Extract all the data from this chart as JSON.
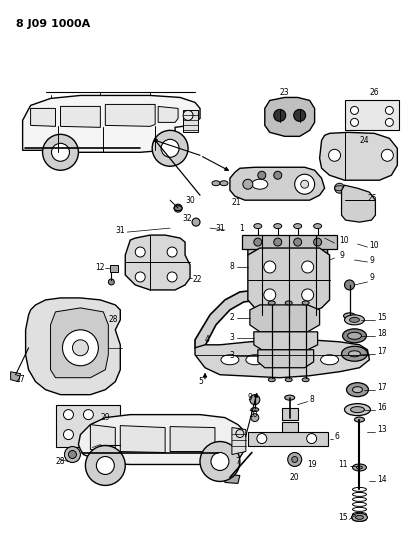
{
  "title": "8 J09 1000A",
  "bg_color": "#ffffff",
  "figsize": [
    4.09,
    5.33
  ],
  "dpi": 100
}
